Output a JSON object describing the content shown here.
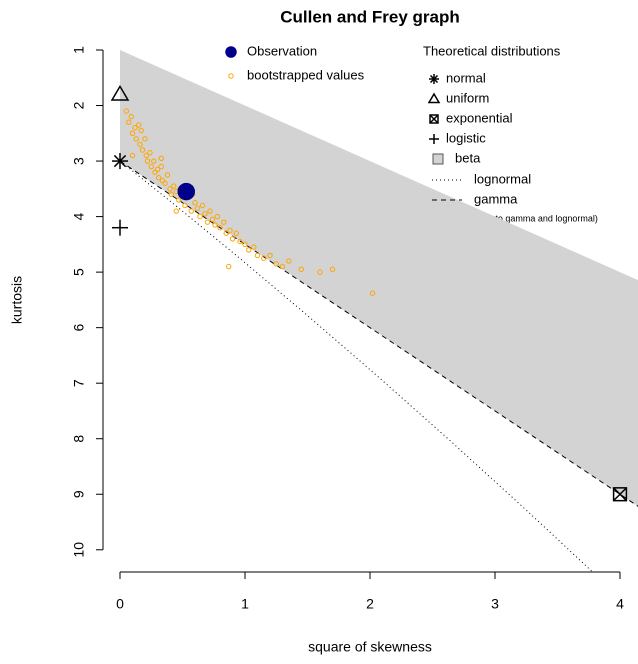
{
  "chart_data": {
    "type": "scatter",
    "title": "Cullen and Frey graph",
    "x_label": "square of skewness",
    "y_label": "kurtosis",
    "xlim": [
      -0.136,
      4.144
    ],
    "ylim": [
      10.4,
      0.64
    ],
    "xticks": [
      0,
      1,
      2,
      3,
      4
    ],
    "yticks": [
      1,
      2,
      3,
      4,
      5,
      6,
      7,
      8,
      9,
      10
    ],
    "legend_title": "Theoretical distributions",
    "note": "(Weibull is close to gamma and lognormal)",
    "series": [
      {
        "name": "beta",
        "kind": "polygon",
        "color": "#d3d3d3",
        "x": [
          0,
          4.2,
          4.2,
          0
        ],
        "values": [
          1,
          5.2,
          9.3,
          3
        ]
      },
      {
        "name": "lognormal",
        "kind": "dotted",
        "color": "#000000",
        "x": [
          0,
          0.2288,
          0.465,
          0.961,
          1.488,
          2.048,
          2.641,
          3.267,
          3.928
        ],
        "values": [
          3,
          3.41,
          3.838,
          4.756,
          5.759,
          6.85,
          8.035,
          9.32,
          10.71
        ]
      },
      {
        "name": "gamma",
        "kind": "dashed",
        "color": "#000000",
        "x": [
          0,
          4.2
        ],
        "values": [
          3,
          9.3
        ]
      },
      {
        "name": "bootstrapped values",
        "kind": "ring",
        "color": "#ffa500",
        "x": [
          0.05,
          0.07,
          0.09,
          0.1,
          0.12,
          0.13,
          0.15,
          0.16,
          0.18,
          0.2,
          0.21,
          0.22,
          0.24,
          0.25,
          0.27,
          0.28,
          0.3,
          0.31,
          0.33,
          0.34,
          0.36,
          0.38,
          0.4,
          0.41,
          0.43,
          0.45,
          0.47,
          0.48,
          0.5,
          0.52,
          0.55,
          0.57,
          0.6,
          0.62,
          0.64,
          0.66,
          0.68,
          0.7,
          0.72,
          0.74,
          0.76,
          0.78,
          0.8,
          0.83,
          0.85,
          0.88,
          0.9,
          0.93,
          0.96,
          1.0,
          1.03,
          1.07,
          1.1,
          1.15,
          1.2,
          1.25,
          1.3,
          1.35,
          1.45,
          1.6,
          1.7,
          2.02,
          0.87,
          0.1,
          0.17,
          0.33,
          0.45,
          0.58
        ],
        "values": [
          2.1,
          2.3,
          2.2,
          2.5,
          2.4,
          2.6,
          2.35,
          2.7,
          2.8,
          2.6,
          2.9,
          3.0,
          2.85,
          3.1,
          3.0,
          3.2,
          3.15,
          3.3,
          3.1,
          3.35,
          3.4,
          3.25,
          3.5,
          3.6,
          3.45,
          3.55,
          3.7,
          3.5,
          3.6,
          3.8,
          3.65,
          3.9,
          3.75,
          3.85,
          4.0,
          3.8,
          3.95,
          4.1,
          3.9,
          4.05,
          4.15,
          4.0,
          4.2,
          4.1,
          4.3,
          4.25,
          4.4,
          4.3,
          4.45,
          4.5,
          4.6,
          4.55,
          4.7,
          4.75,
          4.7,
          4.85,
          4.9,
          4.8,
          4.95,
          5.0,
          4.95,
          5.38,
          4.9,
          2.9,
          2.45,
          2.95,
          3.9,
          3.6
        ]
      },
      {
        "name": "Observation",
        "kind": "dot",
        "color": "#00008b",
        "x": [
          0.53
        ],
        "values": [
          3.55
        ]
      },
      {
        "name": "normal",
        "kind": "asterisk",
        "color": "#000000",
        "x": [
          0
        ],
        "values": [
          3
        ]
      },
      {
        "name": "uniform",
        "kind": "triangle",
        "color": "#000000",
        "x": [
          0
        ],
        "values": [
          1.8
        ]
      },
      {
        "name": "exponential",
        "kind": "boxx",
        "color": "#000000",
        "x": [
          4
        ],
        "values": [
          9
        ]
      },
      {
        "name": "logistic",
        "kind": "plus",
        "color": "#000000",
        "x": [
          0
        ],
        "values": [
          4.2
        ]
      }
    ]
  }
}
